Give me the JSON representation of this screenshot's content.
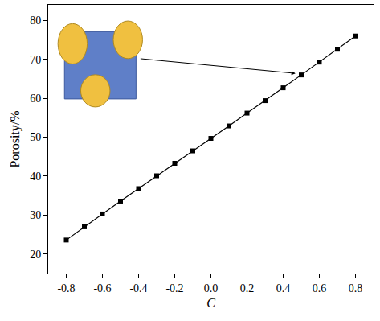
{
  "chart_data": {
    "type": "line",
    "x_label": "C",
    "y_label": "Porosity/%",
    "x": [
      -0.8,
      -0.7,
      -0.6,
      -0.5,
      -0.4,
      -0.3,
      -0.2,
      -0.1,
      0.0,
      0.1,
      0.2,
      0.3,
      0.4,
      0.5,
      0.6,
      0.7,
      0.8
    ],
    "values": [
      23.6,
      27.0,
      30.3,
      33.6,
      36.8,
      40.1,
      43.3,
      46.5,
      49.7,
      52.9,
      56.2,
      59.4,
      62.7,
      66.0,
      69.3,
      72.6,
      76.0
    ],
    "color": "#000000",
    "marker": "square",
    "line_style": "solid",
    "xlim": [
      -0.9,
      0.9
    ],
    "xticks": [
      -0.8,
      -0.6,
      -0.4,
      -0.2,
      {
        "value": 0,
        "label": "0.0"
      },
      0.2,
      0.4,
      0.6,
      0.8
    ],
    "ylim": [
      15,
      84
    ],
    "yticks": [
      20,
      30,
      40,
      50,
      60,
      70,
      80
    ],
    "grid": false
  }
}
